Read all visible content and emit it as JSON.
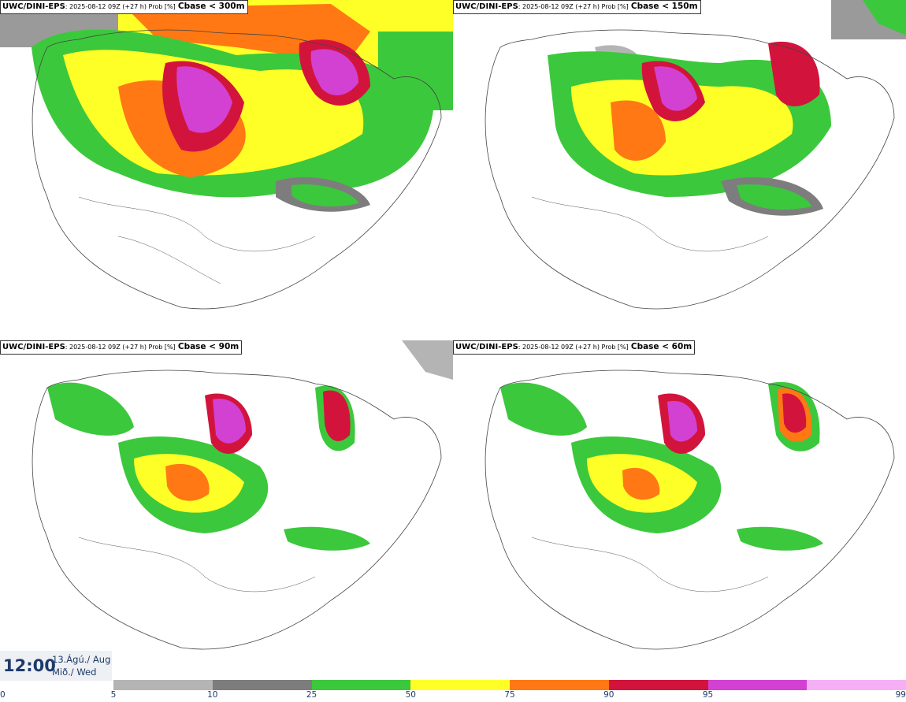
{
  "panels": [
    {
      "model": "UWC/DINI-EPS",
      "meta": ": 2025-08-12 09Z (+27 h) Prob [%]",
      "param": "Cbase < 300m"
    },
    {
      "model": "UWC/DINI-EPS",
      "meta": ": 2025-08-12 09Z (+27 h) Prob [%]",
      "param": "Cbase < 150m"
    },
    {
      "model": "UWC/DINI-EPS",
      "meta": ": 2025-08-12 09Z (+27 h) Prob [%]",
      "param": "Cbase < 90m"
    },
    {
      "model": "UWC/DINI-EPS",
      "meta": ": 2025-08-12 09Z (+27 h) Prob [%]",
      "param": "Cbase < 60m"
    }
  ],
  "valid_time": {
    "time": "12:00",
    "date_line1": "13.Ágú./ Aug",
    "date_line2": "Mið./ Wed"
  },
  "legend": {
    "ticks": [
      "0",
      "5",
      "10",
      "25",
      "50",
      "75",
      "90",
      "95",
      "99"
    ],
    "colors": [
      "#b4b4b4",
      "#7d7d7d",
      "#3cc83c",
      "#ffff28",
      "#ff7814",
      "#d2143c",
      "#d241d2",
      "#f5aff5"
    ]
  }
}
